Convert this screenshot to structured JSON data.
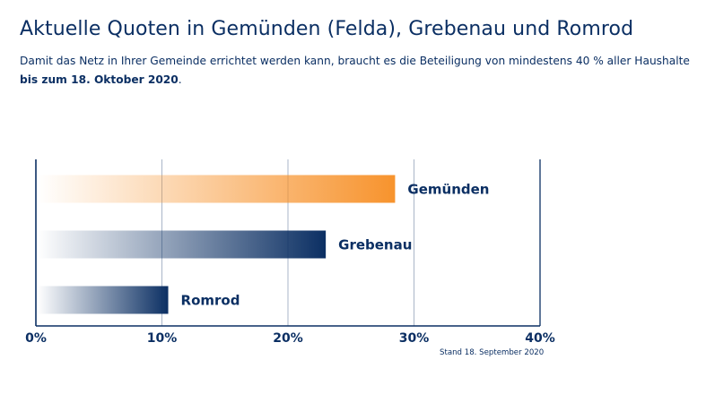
{
  "header": {
    "title": "Aktuelle Quoten in Gemünden (Felda), Grebenau und Romrod",
    "subtitle_text": "Damit das Netz in Ihrer Gemeinde errichtet werden kann, braucht es die Beteiligung von mindestens 40 % aller Haushalte",
    "subtitle_bold": "bis zum 18. Oktober 2020",
    "subtitle_end": "."
  },
  "footer": {
    "stand": "Stand 18. September 2020"
  },
  "colors": {
    "orange": "#f7932d",
    "navy": "#0b2f63",
    "grid": "#a9b6c8",
    "axis": "#0b2f63"
  },
  "chart_data": {
    "type": "bar",
    "orientation": "horizontal",
    "title": "Aktuelle Quoten in Gemünden (Felda), Grebenau und Romrod",
    "categories": [
      "Gemünden",
      "Grebenau",
      "Romrod"
    ],
    "values": [
      28.5,
      23.0,
      10.5
    ],
    "bar_colors": [
      "#f7932d",
      "#0b2f63",
      "#0b2f63"
    ],
    "xlim": [
      0,
      40
    ],
    "xticks": [
      0,
      10,
      20,
      30,
      40
    ],
    "xtick_labels": [
      "0%",
      "10%",
      "20%",
      "30%",
      "40%"
    ],
    "grid": true,
    "legend": "none"
  }
}
